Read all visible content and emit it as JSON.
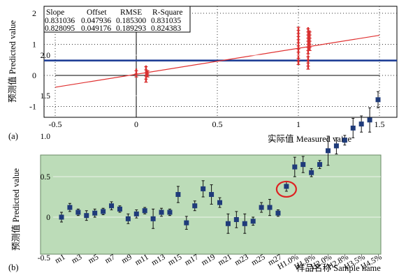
{
  "chart_data": [
    {
      "panel": "(a)",
      "type": "scatter",
      "xlabel": "实际值 Measured value",
      "ylabel": "预测值 Predicted value",
      "xlim": [
        -0.6,
        1.55
      ],
      "ylim": [
        -1.2,
        2.2
      ],
      "x_ticks": [
        "-0.5",
        "0",
        "0.5",
        "1",
        "1.5"
      ],
      "x_tick_values": [
        -0.5,
        0,
        0.5,
        1,
        1.5
      ],
      "y_ticks": [
        "-1",
        "0",
        "1",
        "2"
      ],
      "y_tick_values": [
        -1,
        0,
        1,
        2
      ],
      "grid": "dotted",
      "regression_line": {
        "from": [
          -0.5,
          -0.38
        ],
        "to": [
          1.5,
          1.29
        ],
        "color": "#e03030"
      },
      "horizontal_line": {
        "y": 0.48,
        "color": "#1f3f96"
      },
      "series": [
        {
          "values": [
            {
              "x": 0.0,
              "ymin": -0.05,
              "ymax": 0.22
            },
            {
              "x": 0.06,
              "ymin": -0.22,
              "ymax": 0.32
            },
            {
              "x": 0.07,
              "ymin": -0.05,
              "ymax": 0.15
            },
            {
              "x": 1.0,
              "ymin": 0.35,
              "ymax": 1.55
            },
            {
              "x": 1.06,
              "ymin": 0.2,
              "ymax": 1.55
            },
            {
              "x": 1.07,
              "ymin": 0.8,
              "ymax": 1.45
            }
          ],
          "color": "#d83030"
        }
      ],
      "stats_table": {
        "headers": [
          "Slope",
          "Offset",
          "RMSE",
          "R-Square"
        ],
        "rows": [
          [
            "0.831036",
            "0.047936",
            "0.185300",
            "0.831035"
          ],
          [
            "0.828095",
            "0.049176",
            "0.189293",
            "0.824383"
          ]
        ]
      }
    },
    {
      "panel": "(b)",
      "type": "scatter",
      "xlabel": "样品名称 Sample name",
      "ylabel": "预测值 Predicted value",
      "ylim": [
        -0.5,
        2.0
      ],
      "y_ticks": [
        "-0.5",
        "0",
        "0.5",
        "1.0",
        "1.5",
        "2.0"
      ],
      "y_tick_values": [
        -0.5,
        0,
        0.5,
        1.0,
        1.5,
        2.0
      ],
      "x_tick_labels": [
        "m1",
        "m3",
        "m5",
        "m7",
        "m9",
        "m11",
        "m13",
        "m15",
        "m17",
        "m19",
        "m21",
        "m23",
        "m25",
        "m27",
        "H1.0%",
        "H1.8%",
        "H2.0%",
        "H2.8%",
        "H3.5%",
        "H4.5%"
      ],
      "background": "#bcdcb8",
      "point_color": "#1f3b7a",
      "highlight_index": 27,
      "highlight_color": "#dd2222",
      "values": [
        0.0,
        0.12,
        0.06,
        0.02,
        0.05,
        0.07,
        0.14,
        0.1,
        -0.02,
        0.04,
        0.08,
        -0.02,
        0.06,
        0.06,
        0.28,
        -0.07,
        0.14,
        0.35,
        0.28,
        0.18,
        -0.08,
        -0.03,
        -0.08,
        -0.05,
        0.12,
        0.12,
        0.05,
        0.38,
        0.62,
        0.65,
        0.55,
        0.65,
        0.82,
        0.88,
        0.95,
        1.1,
        1.15,
        1.2,
        1.45
      ],
      "errors": [
        0.06,
        0.05,
        0.04,
        0.06,
        0.05,
        0.04,
        0.05,
        0.04,
        0.06,
        0.05,
        0.04,
        0.12,
        0.05,
        0.04,
        0.1,
        0.08,
        0.06,
        0.1,
        0.12,
        0.06,
        0.12,
        0.1,
        0.12,
        0.05,
        0.06,
        0.1,
        0.04,
        0.06,
        0.12,
        0.1,
        0.05,
        0.05,
        0.18,
        0.1,
        0.06,
        0.12,
        0.1,
        0.15,
        0.1
      ]
    }
  ]
}
